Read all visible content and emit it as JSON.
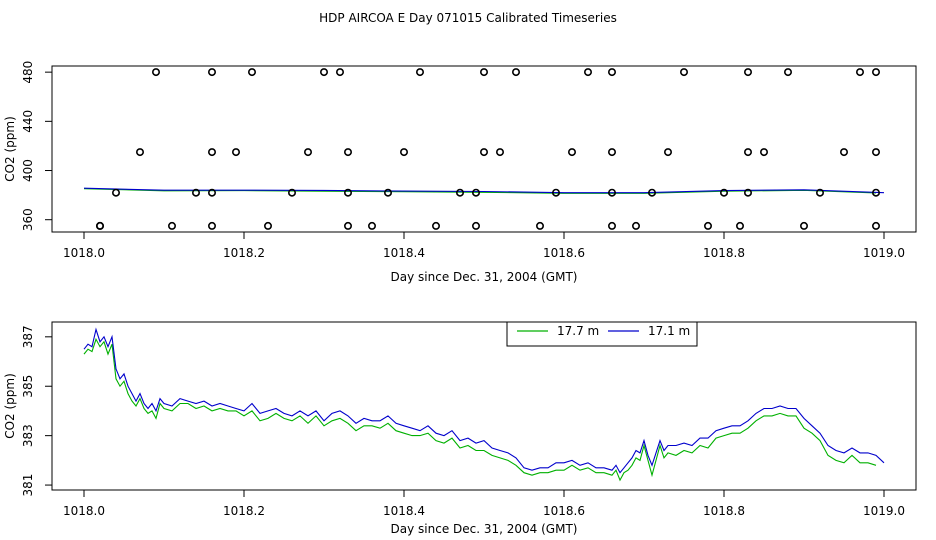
{
  "page_title": "HDP AIRCOA E  Day 071015  Calibrated Timeseries",
  "chart_data": [
    {
      "type": "scatter",
      "xlabel": "Day since Dec. 31, 2004 (GMT)",
      "ylabel": "CO2 (ppm)",
      "xlim": [
        1018.0,
        1019.0
      ],
      "ylim": [
        350,
        485
      ],
      "xticks": [
        "1018.0",
        "1018.2",
        "1018.4",
        "1018.6",
        "1018.8",
        "1019.0"
      ],
      "yticks": [
        "360",
        "400",
        "440",
        "480"
      ],
      "grid": false,
      "points": {
        "x": [
          1018.02,
          1018.09,
          1018.16,
          1018.21,
          1018.3,
          1018.32,
          1018.42,
          1018.5,
          1018.54,
          1018.63,
          1018.66,
          1018.75,
          1018.83,
          1018.88,
          1018.97,
          1018.99,
          1018.07,
          1018.16,
          1018.19,
          1018.28,
          1018.33,
          1018.4,
          1018.5,
          1018.52,
          1018.61,
          1018.66,
          1018.73,
          1018.83,
          1018.85,
          1018.95,
          1018.99,
          1018.04,
          1018.14,
          1018.16,
          1018.26,
          1018.33,
          1018.38,
          1018.47,
          1018.49,
          1018.59,
          1018.66,
          1018.71,
          1018.8,
          1018.83,
          1018.92,
          1018.99,
          1018.02,
          1018.11,
          1018.16,
          1018.23,
          1018.33,
          1018.36,
          1018.44,
          1018.49,
          1018.57,
          1018.66,
          1018.69,
          1018.78,
          1018.82,
          1018.9,
          1018.99
        ],
        "y": [
          355,
          480,
          480,
          480,
          480,
          480,
          480,
          480,
          480,
          480,
          480,
          480,
          480,
          480,
          480,
          480,
          415,
          415,
          415,
          415,
          415,
          415,
          415,
          415,
          415,
          415,
          415,
          415,
          415,
          415,
          415,
          382,
          382,
          382,
          382,
          382,
          382,
          382,
          382,
          382,
          382,
          382,
          382,
          382,
          382,
          382,
          355,
          355,
          355,
          355,
          355,
          355,
          355,
          355,
          355,
          355,
          355,
          355,
          355,
          355,
          355
        ]
      },
      "series": [
        {
          "name": "17.7 m",
          "color": "#00b000",
          "x": [
            1018.0,
            1018.1,
            1018.2,
            1018.3,
            1018.4,
            1018.5,
            1018.6,
            1018.7,
            1018.8,
            1018.9,
            1018.99
          ],
          "y": [
            385.2,
            383.5,
            383.7,
            383.2,
            382.8,
            382.3,
            381.5,
            381.5,
            383.2,
            383.9,
            381.7
          ]
        },
        {
          "name": "17.1 m",
          "color": "#0000cc",
          "x": [
            1018.0,
            1018.1,
            1018.2,
            1018.3,
            1018.4,
            1018.5,
            1018.6,
            1018.7,
            1018.8,
            1018.9,
            1019.0
          ],
          "y": [
            385.6,
            384.0,
            384.0,
            383.8,
            383.3,
            382.9,
            382.0,
            382.0,
            383.7,
            384.3,
            382.0
          ]
        }
      ]
    },
    {
      "type": "line",
      "xlabel": "Day since Dec. 31, 2004 (GMT)",
      "ylabel": "CO2 (ppm)",
      "xlim": [
        1018.0,
        1019.0
      ],
      "ylim": [
        380.8,
        387.6
      ],
      "xticks": [
        "1018.0",
        "1018.2",
        "1018.4",
        "1018.6",
        "1018.8",
        "1019.0"
      ],
      "yticks": [
        "381",
        "383",
        "385",
        "387"
      ],
      "grid": false,
      "legend": "top-center",
      "series": [
        {
          "name": "17.7 m",
          "color": "#00b000",
          "x": [
            1018.0,
            1018.005,
            1018.01,
            1018.015,
            1018.02,
            1018.025,
            1018.03,
            1018.035,
            1018.04,
            1018.045,
            1018.05,
            1018.055,
            1018.06,
            1018.065,
            1018.07,
            1018.075,
            1018.08,
            1018.085,
            1018.09,
            1018.095,
            1018.1,
            1018.11,
            1018.12,
            1018.13,
            1018.14,
            1018.15,
            1018.16,
            1018.17,
            1018.18,
            1018.19,
            1018.2,
            1018.21,
            1018.22,
            1018.23,
            1018.24,
            1018.25,
            1018.26,
            1018.27,
            1018.28,
            1018.29,
            1018.3,
            1018.31,
            1018.32,
            1018.33,
            1018.34,
            1018.35,
            1018.36,
            1018.37,
            1018.38,
            1018.39,
            1018.4,
            1018.41,
            1018.42,
            1018.43,
            1018.44,
            1018.45,
            1018.46,
            1018.47,
            1018.48,
            1018.49,
            1018.5,
            1018.51,
            1018.52,
            1018.53,
            1018.54,
            1018.55,
            1018.56,
            1018.57,
            1018.58,
            1018.59,
            1018.6,
            1018.61,
            1018.62,
            1018.63,
            1018.64,
            1018.65,
            1018.66,
            1018.665,
            1018.67,
            1018.675,
            1018.68,
            1018.685,
            1018.69,
            1018.695,
            1018.7,
            1018.705,
            1018.71,
            1018.715,
            1018.72,
            1018.725,
            1018.73,
            1018.74,
            1018.75,
            1018.76,
            1018.77,
            1018.78,
            1018.79,
            1018.8,
            1018.81,
            1018.82,
            1018.83,
            1018.84,
            1018.85,
            1018.86,
            1018.87,
            1018.88,
            1018.89,
            1018.9,
            1018.91,
            1018.92,
            1018.93,
            1018.94,
            1018.95,
            1018.96,
            1018.97,
            1018.98,
            1018.99
          ],
          "y": [
            386.3,
            386.5,
            386.4,
            386.9,
            386.6,
            386.8,
            386.3,
            386.7,
            385.3,
            385.0,
            385.2,
            384.7,
            384.4,
            384.2,
            384.5,
            384.1,
            383.9,
            384.0,
            383.7,
            384.3,
            384.1,
            384.0,
            384.3,
            384.3,
            384.1,
            384.2,
            384.0,
            384.1,
            384.0,
            384.0,
            383.8,
            384.0,
            383.6,
            383.7,
            383.9,
            383.7,
            383.6,
            383.8,
            383.5,
            383.8,
            383.4,
            383.6,
            383.7,
            383.5,
            383.2,
            383.4,
            383.4,
            383.3,
            383.5,
            383.2,
            383.1,
            383.0,
            383.0,
            383.1,
            382.8,
            382.7,
            382.9,
            382.5,
            382.6,
            382.4,
            382.4,
            382.2,
            382.1,
            382.0,
            381.8,
            381.5,
            381.4,
            381.5,
            381.5,
            381.6,
            381.6,
            381.8,
            381.6,
            381.7,
            381.5,
            381.5,
            381.4,
            381.6,
            381.2,
            381.5,
            381.6,
            381.8,
            382.1,
            382.0,
            382.6,
            382.0,
            381.4,
            382.0,
            382.6,
            382.1,
            382.3,
            382.2,
            382.4,
            382.3,
            382.6,
            382.5,
            382.9,
            383.0,
            383.1,
            383.1,
            383.3,
            383.6,
            383.8,
            383.8,
            383.9,
            383.8,
            383.8,
            383.3,
            383.1,
            382.8,
            382.2,
            382.0,
            381.9,
            382.2,
            381.9,
            381.9,
            381.8
          ]
        },
        {
          "name": "17.1 m",
          "color": "#0000cc",
          "x": [
            1018.0,
            1018.005,
            1018.01,
            1018.015,
            1018.02,
            1018.025,
            1018.03,
            1018.035,
            1018.04,
            1018.045,
            1018.05,
            1018.055,
            1018.06,
            1018.065,
            1018.07,
            1018.075,
            1018.08,
            1018.085,
            1018.09,
            1018.095,
            1018.1,
            1018.11,
            1018.12,
            1018.13,
            1018.14,
            1018.15,
            1018.16,
            1018.17,
            1018.18,
            1018.19,
            1018.2,
            1018.21,
            1018.22,
            1018.23,
            1018.24,
            1018.25,
            1018.26,
            1018.27,
            1018.28,
            1018.29,
            1018.3,
            1018.31,
            1018.32,
            1018.33,
            1018.34,
            1018.35,
            1018.36,
            1018.37,
            1018.38,
            1018.39,
            1018.4,
            1018.41,
            1018.42,
            1018.43,
            1018.44,
            1018.45,
            1018.46,
            1018.47,
            1018.48,
            1018.49,
            1018.5,
            1018.51,
            1018.52,
            1018.53,
            1018.54,
            1018.55,
            1018.56,
            1018.57,
            1018.58,
            1018.59,
            1018.6,
            1018.61,
            1018.62,
            1018.63,
            1018.64,
            1018.65,
            1018.66,
            1018.665,
            1018.67,
            1018.675,
            1018.68,
            1018.685,
            1018.69,
            1018.695,
            1018.7,
            1018.705,
            1018.71,
            1018.715,
            1018.72,
            1018.725,
            1018.73,
            1018.74,
            1018.75,
            1018.76,
            1018.77,
            1018.78,
            1018.79,
            1018.8,
            1018.81,
            1018.82,
            1018.83,
            1018.84,
            1018.85,
            1018.86,
            1018.87,
            1018.88,
            1018.89,
            1018.9,
            1018.91,
            1018.92,
            1018.93,
            1018.94,
            1018.95,
            1018.96,
            1018.97,
            1018.98,
            1018.99,
            1019.0
          ],
          "y": [
            386.5,
            386.7,
            386.6,
            387.3,
            386.8,
            387.0,
            386.6,
            387.0,
            385.7,
            385.3,
            385.5,
            385.0,
            384.7,
            384.4,
            384.7,
            384.3,
            384.1,
            384.3,
            384.0,
            384.5,
            384.3,
            384.2,
            384.5,
            384.4,
            384.3,
            384.4,
            384.2,
            384.3,
            384.2,
            384.1,
            384.0,
            384.3,
            383.9,
            384.0,
            384.1,
            383.9,
            383.8,
            384.0,
            383.8,
            384.0,
            383.6,
            383.9,
            384.0,
            383.8,
            383.5,
            383.7,
            383.6,
            383.6,
            383.8,
            383.5,
            383.4,
            383.3,
            383.2,
            383.4,
            383.1,
            383.0,
            383.2,
            382.8,
            382.9,
            382.7,
            382.8,
            382.5,
            382.4,
            382.3,
            382.1,
            381.7,
            381.6,
            381.7,
            381.7,
            381.9,
            381.9,
            382.0,
            381.8,
            381.9,
            381.7,
            381.7,
            381.6,
            381.8,
            381.5,
            381.7,
            381.9,
            382.1,
            382.4,
            382.3,
            382.8,
            382.2,
            381.8,
            382.3,
            382.8,
            382.4,
            382.6,
            382.6,
            382.7,
            382.6,
            382.9,
            382.9,
            383.2,
            383.3,
            383.4,
            383.4,
            383.6,
            383.9,
            384.1,
            384.1,
            384.2,
            384.1,
            384.1,
            383.7,
            383.4,
            383.1,
            382.6,
            382.4,
            382.3,
            382.5,
            382.3,
            382.3,
            382.2,
            381.9
          ]
        }
      ]
    }
  ]
}
